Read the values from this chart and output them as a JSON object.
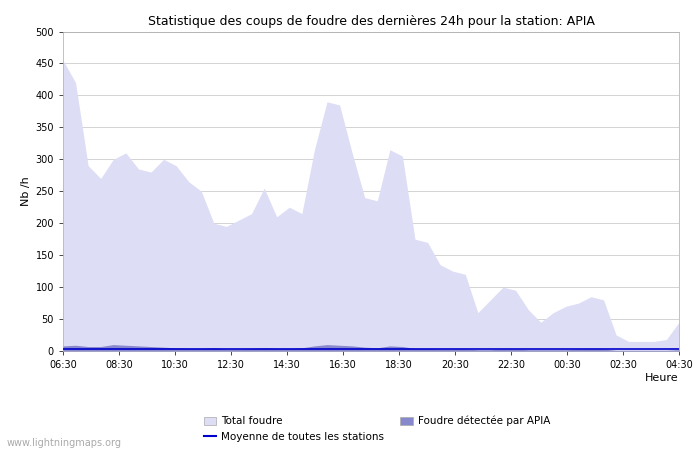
{
  "title": "Statistique des coups de foudre des dernières 24h pour la station: APIA",
  "xlabel": "Heure",
  "ylabel": "Nb /h",
  "ylim": [
    0,
    500
  ],
  "yticks": [
    0,
    50,
    100,
    150,
    200,
    250,
    300,
    350,
    400,
    450,
    500
  ],
  "xtick_labels": [
    "06:30",
    "08:30",
    "10:30",
    "12:30",
    "14:30",
    "16:30",
    "18:30",
    "20:30",
    "22:30",
    "00:30",
    "02:30",
    "04:30"
  ],
  "bg_color": "#ffffff",
  "grid_color": "#cccccc",
  "fill_total_color": "#ddddf5",
  "fill_apia_color": "#8888cc",
  "line_moyenne_color": "#0000cc",
  "watermark": "www.lightningmaps.org",
  "total_foudre": [
    455,
    420,
    290,
    270,
    300,
    310,
    285,
    280,
    300,
    290,
    265,
    250,
    200,
    195,
    205,
    215,
    255,
    210,
    225,
    215,
    315,
    390,
    385,
    310,
    240,
    235,
    315,
    305,
    175,
    170,
    135,
    125,
    120,
    60,
    80,
    100,
    95,
    65,
    45,
    60,
    70,
    75,
    85,
    80,
    25,
    15,
    15,
    15,
    18,
    45
  ],
  "apia_foudre": [
    8,
    9,
    7,
    7,
    10,
    9,
    8,
    7,
    6,
    5,
    4,
    4,
    5,
    3,
    3,
    4,
    5,
    4,
    4,
    5,
    8,
    10,
    9,
    8,
    6,
    5,
    8,
    7,
    4,
    4,
    3,
    3,
    3,
    2,
    2,
    3,
    3,
    2,
    2,
    2,
    2,
    3,
    3,
    3,
    1,
    1,
    1,
    1,
    1,
    2
  ],
  "moyenne": [
    3,
    3,
    3,
    3,
    3,
    3,
    3,
    3,
    3,
    3,
    3,
    3,
    3,
    3,
    3,
    3,
    3,
    3,
    3,
    3,
    3,
    3,
    3,
    3,
    3,
    3,
    3,
    3,
    3,
    3,
    3,
    3,
    3,
    3,
    3,
    3,
    3,
    3,
    3,
    3,
    3,
    3,
    3,
    3,
    3,
    3,
    3,
    3,
    3,
    3
  ],
  "n_points": 50
}
